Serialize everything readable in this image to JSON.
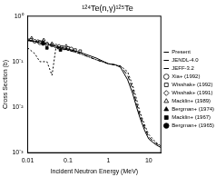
{
  "chart_data": {
    "type": "line",
    "title": "¹²⁴Te(n,γ)¹²⁵Te",
    "x_label": "Incident Neutron Energy (MeV)",
    "y_label": "Cross Section (b)",
    "log": true,
    "grid": false,
    "legend": "right",
    "xlim": [
      0.01,
      20
    ],
    "xticks": [
      0.01,
      0.1,
      1,
      10
    ],
    "ylim": [
      0.001,
      1
    ],
    "yticks": [
      {
        "value": 0.001,
        "label": "10⁻³"
      },
      {
        "value": 0.01,
        "label": "10⁻²"
      },
      {
        "value": 0.1,
        "label": "10⁻¹"
      },
      {
        "value": 1,
        "label": "10⁰"
      }
    ],
    "series": [
      {
        "name": "Present",
        "type": "line",
        "line_style": "solid",
        "color": "#000000",
        "x": [
          0.01,
          0.02,
          0.05,
          0.1,
          0.2,
          0.5,
          1,
          1.5,
          2,
          3,
          4,
          5,
          6,
          8,
          10,
          15,
          20
        ],
        "values": [
          0.3,
          0.26,
          0.22,
          0.19,
          0.16,
          0.12,
          0.09,
          0.085,
          0.075,
          0.04,
          0.02,
          0.01,
          0.006,
          0.003,
          0.002,
          0.0015,
          0.0013
        ]
      },
      {
        "name": "JENDL-4.0",
        "type": "line",
        "line_style": "dashed",
        "color": "#000000",
        "x": [
          0.01,
          0.02,
          0.05,
          0.1,
          0.2,
          0.5,
          1,
          1.5,
          2,
          3,
          4,
          5,
          6,
          8,
          10,
          15,
          20
        ],
        "values": [
          0.3,
          0.27,
          0.21,
          0.18,
          0.15,
          0.11,
          0.09,
          0.085,
          0.08,
          0.05,
          0.025,
          0.012,
          0.007,
          0.0035,
          0.0022,
          0.0016,
          0.0014
        ]
      },
      {
        "name": "JEFF-3.2",
        "type": "line",
        "line_style": "dotted",
        "color": "#000000",
        "x": [
          0.01,
          0.015,
          0.02,
          0.03,
          0.04,
          0.05,
          0.1,
          0.2,
          0.5,
          1,
          2,
          3,
          4,
          5,
          6,
          8,
          10,
          15,
          20
        ],
        "values": [
          0.2,
          0.15,
          0.1,
          0.1,
          0.05,
          0.2,
          0.18,
          0.15,
          0.11,
          0.09,
          0.08,
          0.06,
          0.03,
          0.015,
          0.008,
          0.004,
          0.0025,
          0.0017,
          0.0014
        ]
      },
      {
        "name": "Xia+ (1992)",
        "type": "scatter",
        "marker": "circle",
        "color": "#000000",
        "x": [
          0.015,
          0.02,
          0.03,
          0.05,
          0.08,
          0.12
        ],
        "values": [
          0.28,
          0.26,
          0.24,
          0.22,
          0.2,
          0.19
        ]
      },
      {
        "name": "Wisshak+ (1992)",
        "type": "scatter",
        "marker": "square",
        "color": "#000000",
        "x": [
          0.012,
          0.02,
          0.04,
          0.07,
          0.1,
          0.15,
          0.2
        ],
        "values": [
          0.3,
          0.27,
          0.23,
          0.21,
          0.2,
          0.18,
          0.17
        ]
      },
      {
        "name": "Wisshak+ (1991)",
        "type": "scatter",
        "marker": "diamond",
        "color": "#000000",
        "x": [
          0.01,
          0.018,
          0.03,
          0.06,
          0.1
        ],
        "values": [
          0.3,
          0.28,
          0.25,
          0.22,
          0.19
        ]
      },
      {
        "name": "Macklin+ (1989)",
        "type": "scatter",
        "marker": "triangle",
        "color": "#000000",
        "x": [
          0.0125,
          0.025,
          0.04,
          0.06,
          0.09
        ],
        "values": [
          0.33,
          0.3,
          0.25,
          0.2,
          0.22
        ]
      },
      {
        "name": "Bergman+ (1974)",
        "type": "scatter",
        "marker": "filled_triangle",
        "color": "#000000",
        "x": [
          0.024
        ],
        "values": [
          0.28
        ]
      },
      {
        "name": "Macklin+ (1967)",
        "type": "scatter",
        "marker": "filled_square",
        "color": "#000000",
        "x": [
          0.03,
          0.065
        ],
        "values": [
          0.2,
          0.18
        ]
      },
      {
        "name": "Bergman+ (1965)",
        "type": "scatter",
        "marker": "filled_circle",
        "color": "#000000",
        "x": [
          0.024
        ],
        "values": [
          0.25
        ]
      }
    ]
  }
}
